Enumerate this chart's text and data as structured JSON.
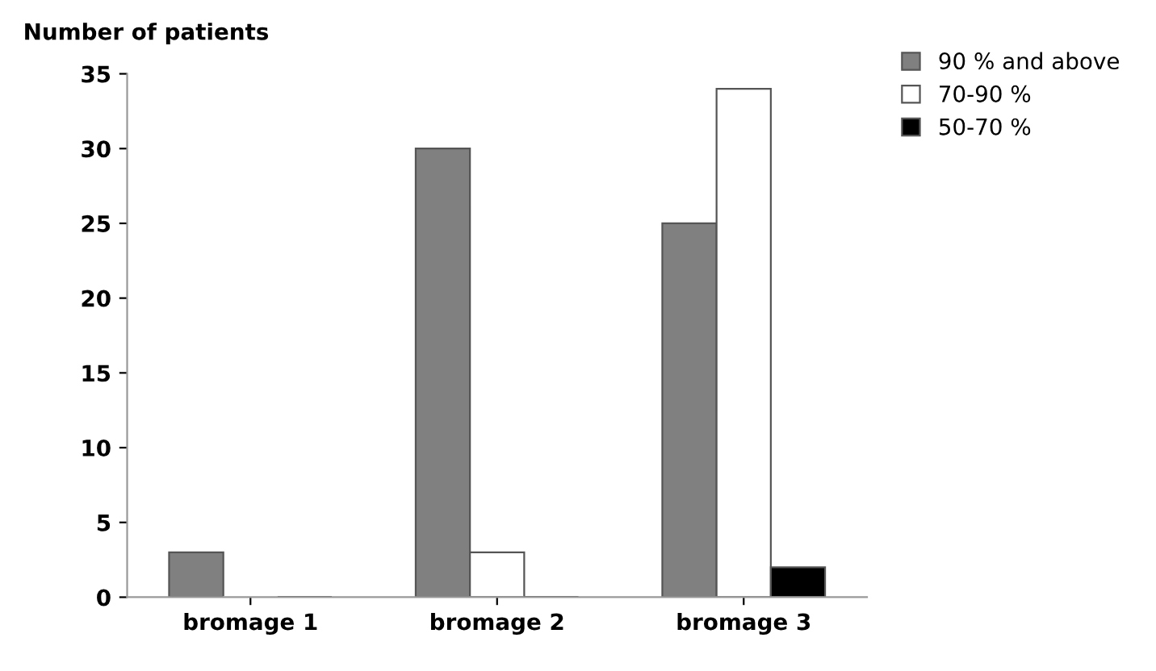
{
  "chart_data": {
    "type": "bar",
    "ylabel": "Number of patients",
    "categories": [
      "bromage 1",
      "bromage 2",
      "bromage 3"
    ],
    "series": [
      {
        "name": "90 % and above",
        "color": "#808080",
        "values": [
          3,
          30,
          25
        ]
      },
      {
        "name": "70-90 %",
        "color": "#ffffff",
        "values": [
          0,
          3,
          34
        ]
      },
      {
        "name": "50-70 %",
        "color": "#000000",
        "values": [
          0,
          0,
          2
        ]
      }
    ],
    "ylim": [
      0,
      35
    ],
    "yticks": [
      0,
      5,
      10,
      15,
      20,
      25,
      30,
      35
    ],
    "grid": false,
    "legend": "top right"
  }
}
